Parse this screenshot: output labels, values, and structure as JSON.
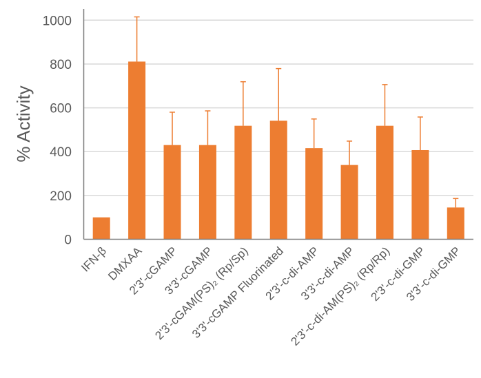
{
  "chart_data": {
    "type": "bar",
    "title": "",
    "xlabel": "",
    "ylabel": "% Activity",
    "ylim": [
      0,
      1000
    ],
    "yticks": [
      0,
      200,
      400,
      600,
      800,
      1000
    ],
    "grid": true,
    "legend": null,
    "categories": [
      "IFN-β",
      "DMXAA",
      "2'3'-cGAMP",
      "3'3'-cGAMP",
      "2'3'-cGAM(PS)₂ (Rp/Sp)",
      "3'3'-cGAMP Fluorinated",
      "2'3'-c-di-AMP",
      "3'3'-c-di-AMP",
      "2'3'-c-di-AM(PS)₂ (Rp/Rp)",
      "2'3'-c-di-GMP",
      "3'3'-c-di-GMP"
    ],
    "series": [
      {
        "name": "% Activity",
        "color": "#ED7D31",
        "values": [
          100,
          811,
          430,
          430,
          518,
          541,
          416,
          339,
          518,
          407,
          145
        ],
        "error_upper": [
          null,
          1015,
          580,
          586,
          719,
          779,
          549,
          448,
          706,
          558,
          186
        ]
      }
    ]
  },
  "colors": {
    "bar": "#ED7D31",
    "grid": "#D9D9D9",
    "axis": "#7F7F7F",
    "text": "#595959"
  }
}
